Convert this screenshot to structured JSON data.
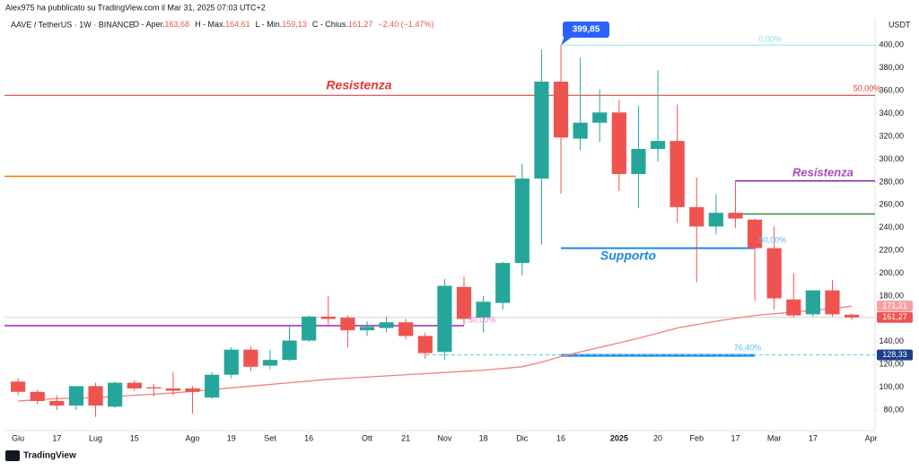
{
  "header": {
    "byline": "Alex975 ha pubblicato su TradingView.com il Mar 31, 2025 07:03 UTC+2",
    "symbol": "AAVE / TetherUS · 1W · BINANCE",
    "legend": [
      {
        "label": "O - Aper.",
        "value": "163,68"
      },
      {
        "label": "H - Max.",
        "value": "164,61"
      },
      {
        "label": "L - Min.",
        "value": "159,13"
      },
      {
        "label": "C - Chius.",
        "value": "161,27"
      }
    ],
    "change": "−2,40 (−1,47%)",
    "currency": "USDT"
  },
  "footer": {
    "brand": "TradingView"
  },
  "chart_data": {
    "type": "candlestick",
    "open": [
      105,
      96,
      88,
      84,
      101,
      83,
      104,
      100,
      99,
      99,
      91,
      111,
      133,
      119,
      124,
      141,
      162,
      161,
      150,
      152,
      157,
      145,
      131,
      188,
      161,
      174,
      209,
      283,
      368,
      318,
      332,
      341,
      287,
      309,
      316,
      258,
      241,
      253,
      247,
      222,
      177,
      164,
      185,
      163.68
    ],
    "high": [
      108,
      98,
      93,
      101,
      104,
      105,
      106,
      103,
      113,
      101,
      113,
      135,
      136,
      133,
      155,
      163,
      180,
      163,
      158,
      162,
      160,
      148,
      195,
      197,
      180,
      210,
      296,
      396,
      399.85,
      389,
      361,
      352,
      347,
      378,
      348,
      284,
      269,
      280,
      248,
      241,
      200,
      185,
      194,
      164.61
    ],
    "low": [
      93,
      85,
      80,
      80,
      74,
      82,
      97,
      92,
      93,
      77,
      90,
      108,
      114,
      116,
      123,
      140,
      155,
      135,
      145,
      148,
      142,
      125,
      124,
      155,
      148,
      168,
      198,
      225,
      270,
      308,
      315,
      272,
      257,
      298,
      244,
      192,
      234,
      240,
      176,
      168,
      161,
      162,
      162,
      159.13
    ],
    "close": [
      96,
      88,
      84,
      101,
      84,
      104,
      99,
      99,
      97,
      96,
      111,
      133,
      118,
      124,
      141,
      162,
      160,
      150,
      153,
      157,
      145,
      130,
      189,
      160,
      175,
      209,
      283,
      368,
      319,
      332,
      341,
      287,
      309,
      316,
      258,
      241,
      253,
      248,
      222,
      178,
      163,
      185,
      164,
      161.27
    ],
    "up_color": "#26a69a",
    "down_color": "#ef5350",
    "xlim": [
      -0.7,
      44.2
    ],
    "ylim": [
      62,
      416
    ],
    "xticks": [
      {
        "value": 0,
        "label": "Giu"
      },
      {
        "value": 2,
        "label": "17"
      },
      {
        "value": 4,
        "label": "Lug"
      },
      {
        "value": 6,
        "label": "15"
      },
      {
        "value": 9,
        "label": "Ago"
      },
      {
        "value": 11,
        "label": "19"
      },
      {
        "value": 13,
        "label": "Set"
      },
      {
        "value": 15,
        "label": "16"
      },
      {
        "value": 18,
        "label": "Ott"
      },
      {
        "value": 20,
        "label": "21"
      },
      {
        "value": 22,
        "label": "Nov"
      },
      {
        "value": 24,
        "label": "18"
      },
      {
        "value": 26,
        "label": "Dic"
      },
      {
        "value": 28,
        "label": "16"
      },
      {
        "value": 31,
        "label": "2025"
      },
      {
        "value": 33,
        "label": "20"
      },
      {
        "value": 35,
        "label": "Feb"
      },
      {
        "value": 37,
        "label": "17"
      },
      {
        "value": 39,
        "label": "Mar"
      },
      {
        "value": 41,
        "label": "17"
      },
      {
        "value": 44,
        "label": "Apr"
      }
    ],
    "yticks": [
      {
        "value": 80,
        "label": "80,00"
      },
      {
        "value": 100,
        "label": "100,00"
      },
      {
        "value": 120,
        "label": "120,00"
      },
      {
        "value": 140,
        "label": "140,00"
      },
      {
        "value": 160,
        "label": "160,00"
      },
      {
        "value": 180,
        "label": "180,00"
      },
      {
        "value": 200,
        "label": "200,00"
      },
      {
        "value": 220,
        "label": "220,00"
      },
      {
        "value": 240,
        "label": "240,00"
      },
      {
        "value": 260,
        "label": "260,00"
      },
      {
        "value": 280,
        "label": "280,00"
      },
      {
        "value": 300,
        "label": "300,00"
      },
      {
        "value": 320,
        "label": "320,00"
      },
      {
        "value": 340,
        "label": "340,00"
      },
      {
        "value": 360,
        "label": "360,00"
      },
      {
        "value": 380,
        "label": "380,00"
      },
      {
        "value": 400,
        "label": "400,00"
      }
    ],
    "moving_average": {
      "color": "#f08080",
      "x": [
        0,
        2,
        4,
        6,
        8,
        10,
        12,
        14,
        16,
        18,
        20,
        22,
        24,
        26,
        27,
        28,
        30,
        32,
        34,
        36,
        38,
        40,
        42,
        43
      ],
      "values": [
        88,
        90,
        91,
        93,
        95,
        98,
        101,
        104,
        107,
        109,
        111,
        113,
        115,
        118,
        122,
        127,
        135,
        143,
        152,
        158,
        163,
        166,
        169,
        171.21
      ]
    },
    "levels": [
      {
        "price": 356,
        "color": "#d32f2f"
      },
      {
        "price": 285,
        "color": "#f57c00"
      },
      {
        "price": 154,
        "color": "#9c27b0"
      },
      {
        "price": 400,
        "color": "#b2ebf2"
      },
      {
        "price": 281,
        "color": "#7b1fa2"
      },
      {
        "price": 252,
        "color": "#388e3c"
      },
      {
        "price": 222,
        "color": "#1e88e5"
      },
      {
        "price": 128,
        "color": "#1e88e5"
      },
      {
        "price": 128.33,
        "color": "#4dd0e1"
      },
      {
        "price": 161.27,
        "color": "#cccccc"
      }
    ],
    "annotations": [
      {
        "text": "Resistenza",
        "color": "#e53935"
      },
      {
        "text": "Resistenza",
        "color": "#ab47bc"
      },
      {
        "text": "Supporto",
        "color": "#1e88e5"
      },
      {
        "text": "50,00%",
        "color": "#e53935"
      },
      {
        "text": "50,00%",
        "color": "#e57ce0"
      },
      {
        "text": "0,00%",
        "color": "#80deea"
      },
      {
        "text": "50,00%",
        "color": "#64b5f6"
      },
      {
        "text": "76,40%",
        "color": "#4fc3f7"
      }
    ],
    "price_tags": [
      {
        "value": 399.85,
        "label": "399,85",
        "color": "#2962ff"
      },
      {
        "value": 171.21,
        "label": "171,21",
        "color": "#f7a1a1"
      },
      {
        "value": 161.27,
        "label": "161,27",
        "color": "#ef5350"
      },
      {
        "value": 128.33,
        "label": "128,33",
        "color": "#1a3f8c"
      }
    ]
  }
}
